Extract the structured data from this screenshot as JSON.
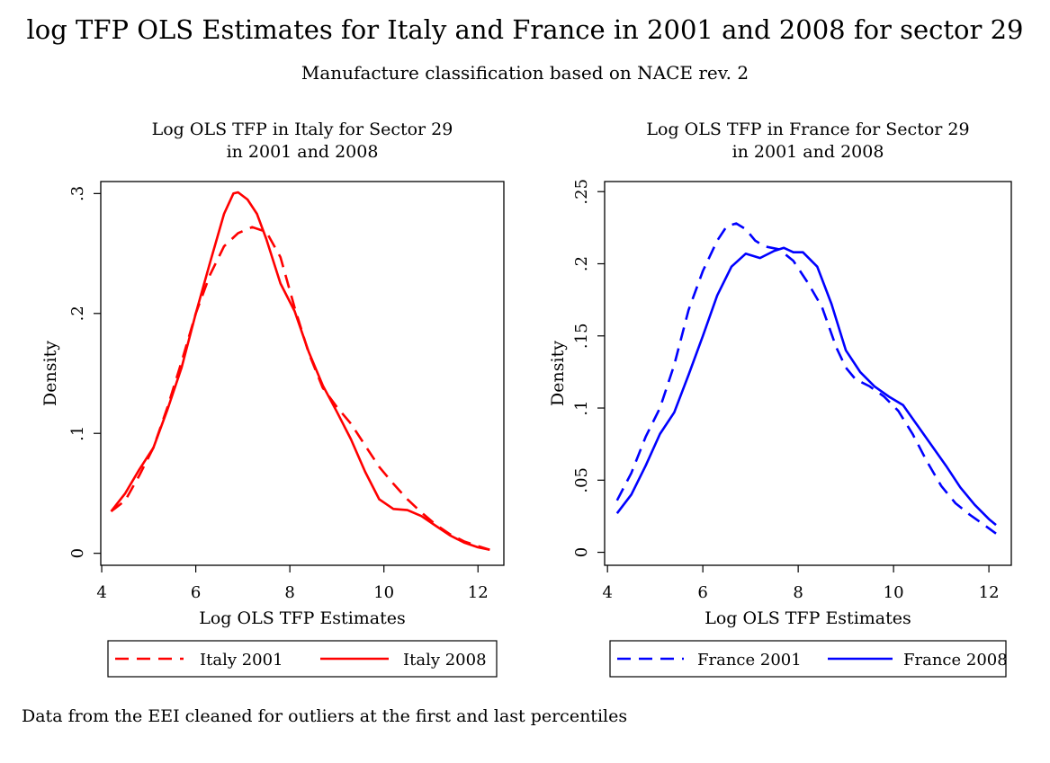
{
  "title": "log TFP OLS Estimates for Italy and France in 2001 and 2008 for sector 29",
  "subtitle": "Manufacture classification based on NACE rev. 2",
  "note": "Data from the EEI cleaned for outliers at the first and last percentiles",
  "chart_data": [
    {
      "type": "line",
      "title_lines": [
        "Log OLS TFP in Italy for Sector 29",
        "in 2001 and 2008"
      ],
      "xlabel": "Log OLS TFP Estimates",
      "ylabel": "Density",
      "xlim": [
        3.98,
        12.55
      ],
      "ylim": [
        -0.01,
        0.31
      ],
      "xticks": [
        4,
        6,
        8,
        10,
        12
      ],
      "xtick_labels": [
        "4",
        "6",
        "8",
        "10",
        "12"
      ],
      "yticks": [
        0,
        0.1,
        0.2,
        0.3
      ],
      "ytick_labels": [
        "0",
        ".1",
        ".2",
        ".3"
      ],
      "grid": false,
      "legend_position": "bottom",
      "series": [
        {
          "name": "Italy 2001",
          "color": "#ff0000",
          "dash": "dashed",
          "x": [
            4.2,
            4.5,
            4.8,
            5.1,
            5.4,
            5.7,
            6.0,
            6.3,
            6.6,
            6.9,
            7.2,
            7.5,
            7.8,
            8.1,
            8.4,
            8.7,
            9.0,
            9.3,
            9.6,
            9.9,
            10.2,
            10.5,
            10.8,
            11.1,
            11.4,
            11.7,
            12.0,
            12.25
          ],
          "y": [
            0.035,
            0.044,
            0.065,
            0.088,
            0.122,
            0.16,
            0.2,
            0.232,
            0.256,
            0.267,
            0.272,
            0.268,
            0.247,
            0.205,
            0.167,
            0.138,
            0.122,
            0.108,
            0.09,
            0.072,
            0.058,
            0.045,
            0.034,
            0.024,
            0.016,
            0.01,
            0.006,
            0.003
          ]
        },
        {
          "name": "Italy 2008",
          "color": "#ff0000",
          "dash": "solid",
          "x": [
            4.2,
            4.5,
            4.8,
            5.1,
            5.4,
            5.7,
            6.0,
            6.3,
            6.6,
            6.8,
            6.9,
            7.1,
            7.3,
            7.5,
            7.8,
            8.1,
            8.4,
            8.7,
            9.0,
            9.3,
            9.6,
            9.9,
            10.2,
            10.5,
            10.8,
            11.1,
            11.4,
            11.7,
            12.0,
            12.25
          ],
          "y": [
            0.035,
            0.05,
            0.07,
            0.088,
            0.12,
            0.155,
            0.2,
            0.242,
            0.283,
            0.3,
            0.301,
            0.295,
            0.283,
            0.262,
            0.225,
            0.202,
            0.168,
            0.14,
            0.118,
            0.095,
            0.068,
            0.045,
            0.037,
            0.036,
            0.031,
            0.023,
            0.015,
            0.009,
            0.005,
            0.003
          ]
        }
      ]
    },
    {
      "type": "line",
      "title_lines": [
        "Log OLS TFP in France for Sector 29",
        "in 2001 and 2008"
      ],
      "xlabel": "Log OLS TFP Estimates",
      "ylabel": "Density",
      "xlim": [
        3.94,
        12.47
      ],
      "ylim": [
        -0.009,
        0.257
      ],
      "xticks": [
        4,
        6,
        8,
        10,
        12
      ],
      "xtick_labels": [
        "4",
        "6",
        "8",
        "10",
        "12"
      ],
      "yticks": [
        0,
        0.05,
        0.1,
        0.15,
        0.2,
        0.25
      ],
      "ytick_labels": [
        "0",
        ".05",
        ".1",
        ".15",
        ".2",
        ".25"
      ],
      "grid": false,
      "legend_position": "bottom",
      "series": [
        {
          "name": "France 2001",
          "color": "#0000ff",
          "dash": "dashed",
          "x": [
            4.2,
            4.5,
            4.8,
            5.1,
            5.4,
            5.7,
            6.0,
            6.3,
            6.5,
            6.7,
            6.9,
            7.1,
            7.3,
            7.6,
            7.9,
            8.2,
            8.5,
            8.8,
            9.0,
            9.2,
            9.5,
            9.8,
            10.1,
            10.4,
            10.7,
            11.0,
            11.3,
            11.6,
            11.9,
            12.15
          ],
          "y": [
            0.036,
            0.055,
            0.08,
            0.1,
            0.13,
            0.168,
            0.195,
            0.216,
            0.226,
            0.228,
            0.224,
            0.216,
            0.212,
            0.21,
            0.202,
            0.187,
            0.17,
            0.142,
            0.128,
            0.12,
            0.115,
            0.108,
            0.098,
            0.082,
            0.063,
            0.046,
            0.034,
            0.026,
            0.019,
            0.013
          ]
        },
        {
          "name": "France 2008",
          "color": "#0000ff",
          "dash": "solid",
          "x": [
            4.2,
            4.5,
            4.8,
            5.1,
            5.4,
            5.7,
            6.0,
            6.3,
            6.6,
            6.9,
            7.2,
            7.5,
            7.7,
            7.9,
            8.1,
            8.4,
            8.7,
            9.0,
            9.3,
            9.6,
            9.9,
            10.2,
            10.5,
            10.8,
            11.1,
            11.4,
            11.7,
            12.0,
            12.15
          ],
          "y": [
            0.027,
            0.04,
            0.06,
            0.082,
            0.097,
            0.123,
            0.15,
            0.178,
            0.198,
            0.207,
            0.204,
            0.209,
            0.211,
            0.208,
            0.208,
            0.198,
            0.172,
            0.14,
            0.125,
            0.115,
            0.108,
            0.102,
            0.088,
            0.074,
            0.06,
            0.045,
            0.033,
            0.023,
            0.019
          ]
        }
      ]
    }
  ]
}
